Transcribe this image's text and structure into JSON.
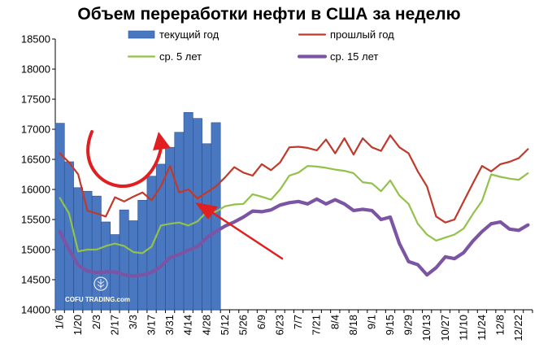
{
  "chart_data": {
    "type": "bar+line",
    "title": "Объем переработки нефти в США за неделю",
    "xlabel": "",
    "ylabel": "",
    "ylim": [
      14000,
      18500
    ],
    "yticks": [
      14000,
      14500,
      15000,
      15500,
      16000,
      16500,
      17000,
      17500,
      18000,
      18500
    ],
    "week_count": 52,
    "xtick_labels": [
      "1/6",
      "1/20",
      "2/3",
      "2/17",
      "3/3",
      "3/17",
      "3/31",
      "4/14",
      "4/28",
      "5/12",
      "5/26",
      "6/9",
      "6/23",
      "7/7",
      "7/21",
      "8/4",
      "8/18",
      "9/1",
      "9/15",
      "9/29",
      "10/13",
      "10/27",
      "11/10",
      "11/24",
      "12/8",
      "12/22"
    ],
    "colors": {
      "bars": "#4a78c0",
      "bars_edge": "#2a4f8f",
      "last_year": "#c0392b",
      "avg5": "#92c24a",
      "avg15": "#7b54a3",
      "arrow": "#e02020",
      "axis": "#000000"
    },
    "series": [
      {
        "name": "текущий год",
        "kind": "bar",
        "values": [
          17100,
          16460,
          16030,
          15970,
          15890,
          15460,
          15250,
          15660,
          15480,
          15820,
          16220,
          16420,
          16700,
          16950,
          17280,
          17180,
          16760,
          17110
        ]
      },
      {
        "name": "прошлый год",
        "kind": "line",
        "values": [
          16600,
          16450,
          16250,
          15650,
          15600,
          15550,
          15870,
          15800,
          15880,
          15950,
          15820,
          16050,
          16390,
          15950,
          16000,
          15850,
          15950,
          16050,
          16200,
          16370,
          16280,
          16230,
          16420,
          16320,
          16450,
          16700,
          16710,
          16690,
          16650,
          16830,
          16600,
          16850,
          16580,
          16850,
          16700,
          16640,
          16900,
          16700,
          16600,
          16300,
          16050,
          15550,
          15450,
          15500,
          15800,
          16100,
          16390,
          16300,
          16420,
          16460,
          16520,
          16670
        ]
      },
      {
        "name": "ср. 5 лет",
        "kind": "line",
        "values": [
          15860,
          15600,
          14970,
          15000,
          15000,
          15060,
          15100,
          15060,
          14960,
          14940,
          15050,
          15400,
          15430,
          15450,
          15400,
          15470,
          15630,
          15630,
          15720,
          15750,
          15760,
          15920,
          15880,
          15830,
          16000,
          16230,
          16280,
          16390,
          16380,
          16360,
          16330,
          16310,
          16270,
          16120,
          16100,
          15970,
          16150,
          15900,
          15760,
          15430,
          15250,
          15150,
          15200,
          15250,
          15350,
          15590,
          15810,
          16250,
          16210,
          16180,
          16160,
          16270
        ]
      },
      {
        "name": "ср. 15 лет",
        "kind": "line",
        "values": [
          15300,
          15000,
          14740,
          14640,
          14620,
          14630,
          14630,
          14580,
          14560,
          14580,
          14620,
          14720,
          14870,
          14920,
          14990,
          15050,
          15200,
          15300,
          15390,
          15460,
          15540,
          15640,
          15630,
          15660,
          15740,
          15780,
          15800,
          15760,
          15840,
          15760,
          15830,
          15760,
          15650,
          15670,
          15650,
          15500,
          15540,
          15100,
          14800,
          14750,
          14580,
          14700,
          14880,
          14850,
          14950,
          15140,
          15300,
          15430,
          15460,
          15340,
          15320,
          15410
        ]
      }
    ],
    "watermark": "COFU TRADING.com"
  }
}
